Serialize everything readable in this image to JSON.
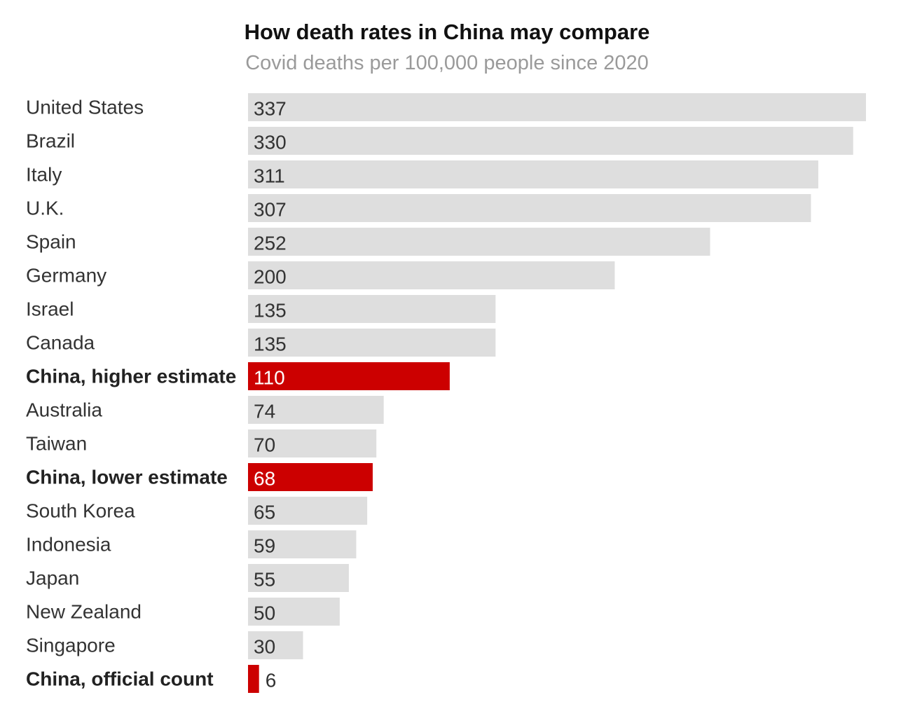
{
  "chart_data": {
    "type": "bar",
    "orientation": "horizontal",
    "title": "How death rates in China may compare",
    "subtitle": "Covid deaths per 100,000 people since 2020",
    "categories": [
      "United States",
      "Brazil",
      "Italy",
      "U.K.",
      "Spain",
      "Germany",
      "Israel",
      "Canada",
      "China, higher estimate",
      "Australia",
      "Taiwan",
      "China, lower estimate",
      "South Korea",
      "Indonesia",
      "Japan",
      "New Zealand",
      "Singapore",
      "China, official count"
    ],
    "values": [
      337,
      330,
      311,
      307,
      252,
      200,
      135,
      135,
      110,
      74,
      70,
      68,
      65,
      59,
      55,
      50,
      30,
      6
    ],
    "highlighted": [
      false,
      false,
      false,
      false,
      false,
      false,
      false,
      false,
      true,
      false,
      false,
      true,
      false,
      false,
      false,
      false,
      false,
      true
    ],
    "value_labels": [
      "337",
      "330",
      "311",
      "307",
      "252",
      "200",
      "135",
      "135",
      "110",
      "74",
      "70",
      "68",
      "65",
      "59",
      "55",
      "50",
      "30",
      "6"
    ],
    "xlim": [
      0,
      337
    ],
    "grid": false,
    "legend": "none",
    "colors": {
      "default_bar": "#dedede",
      "highlight_bar": "#cc0000"
    }
  }
}
